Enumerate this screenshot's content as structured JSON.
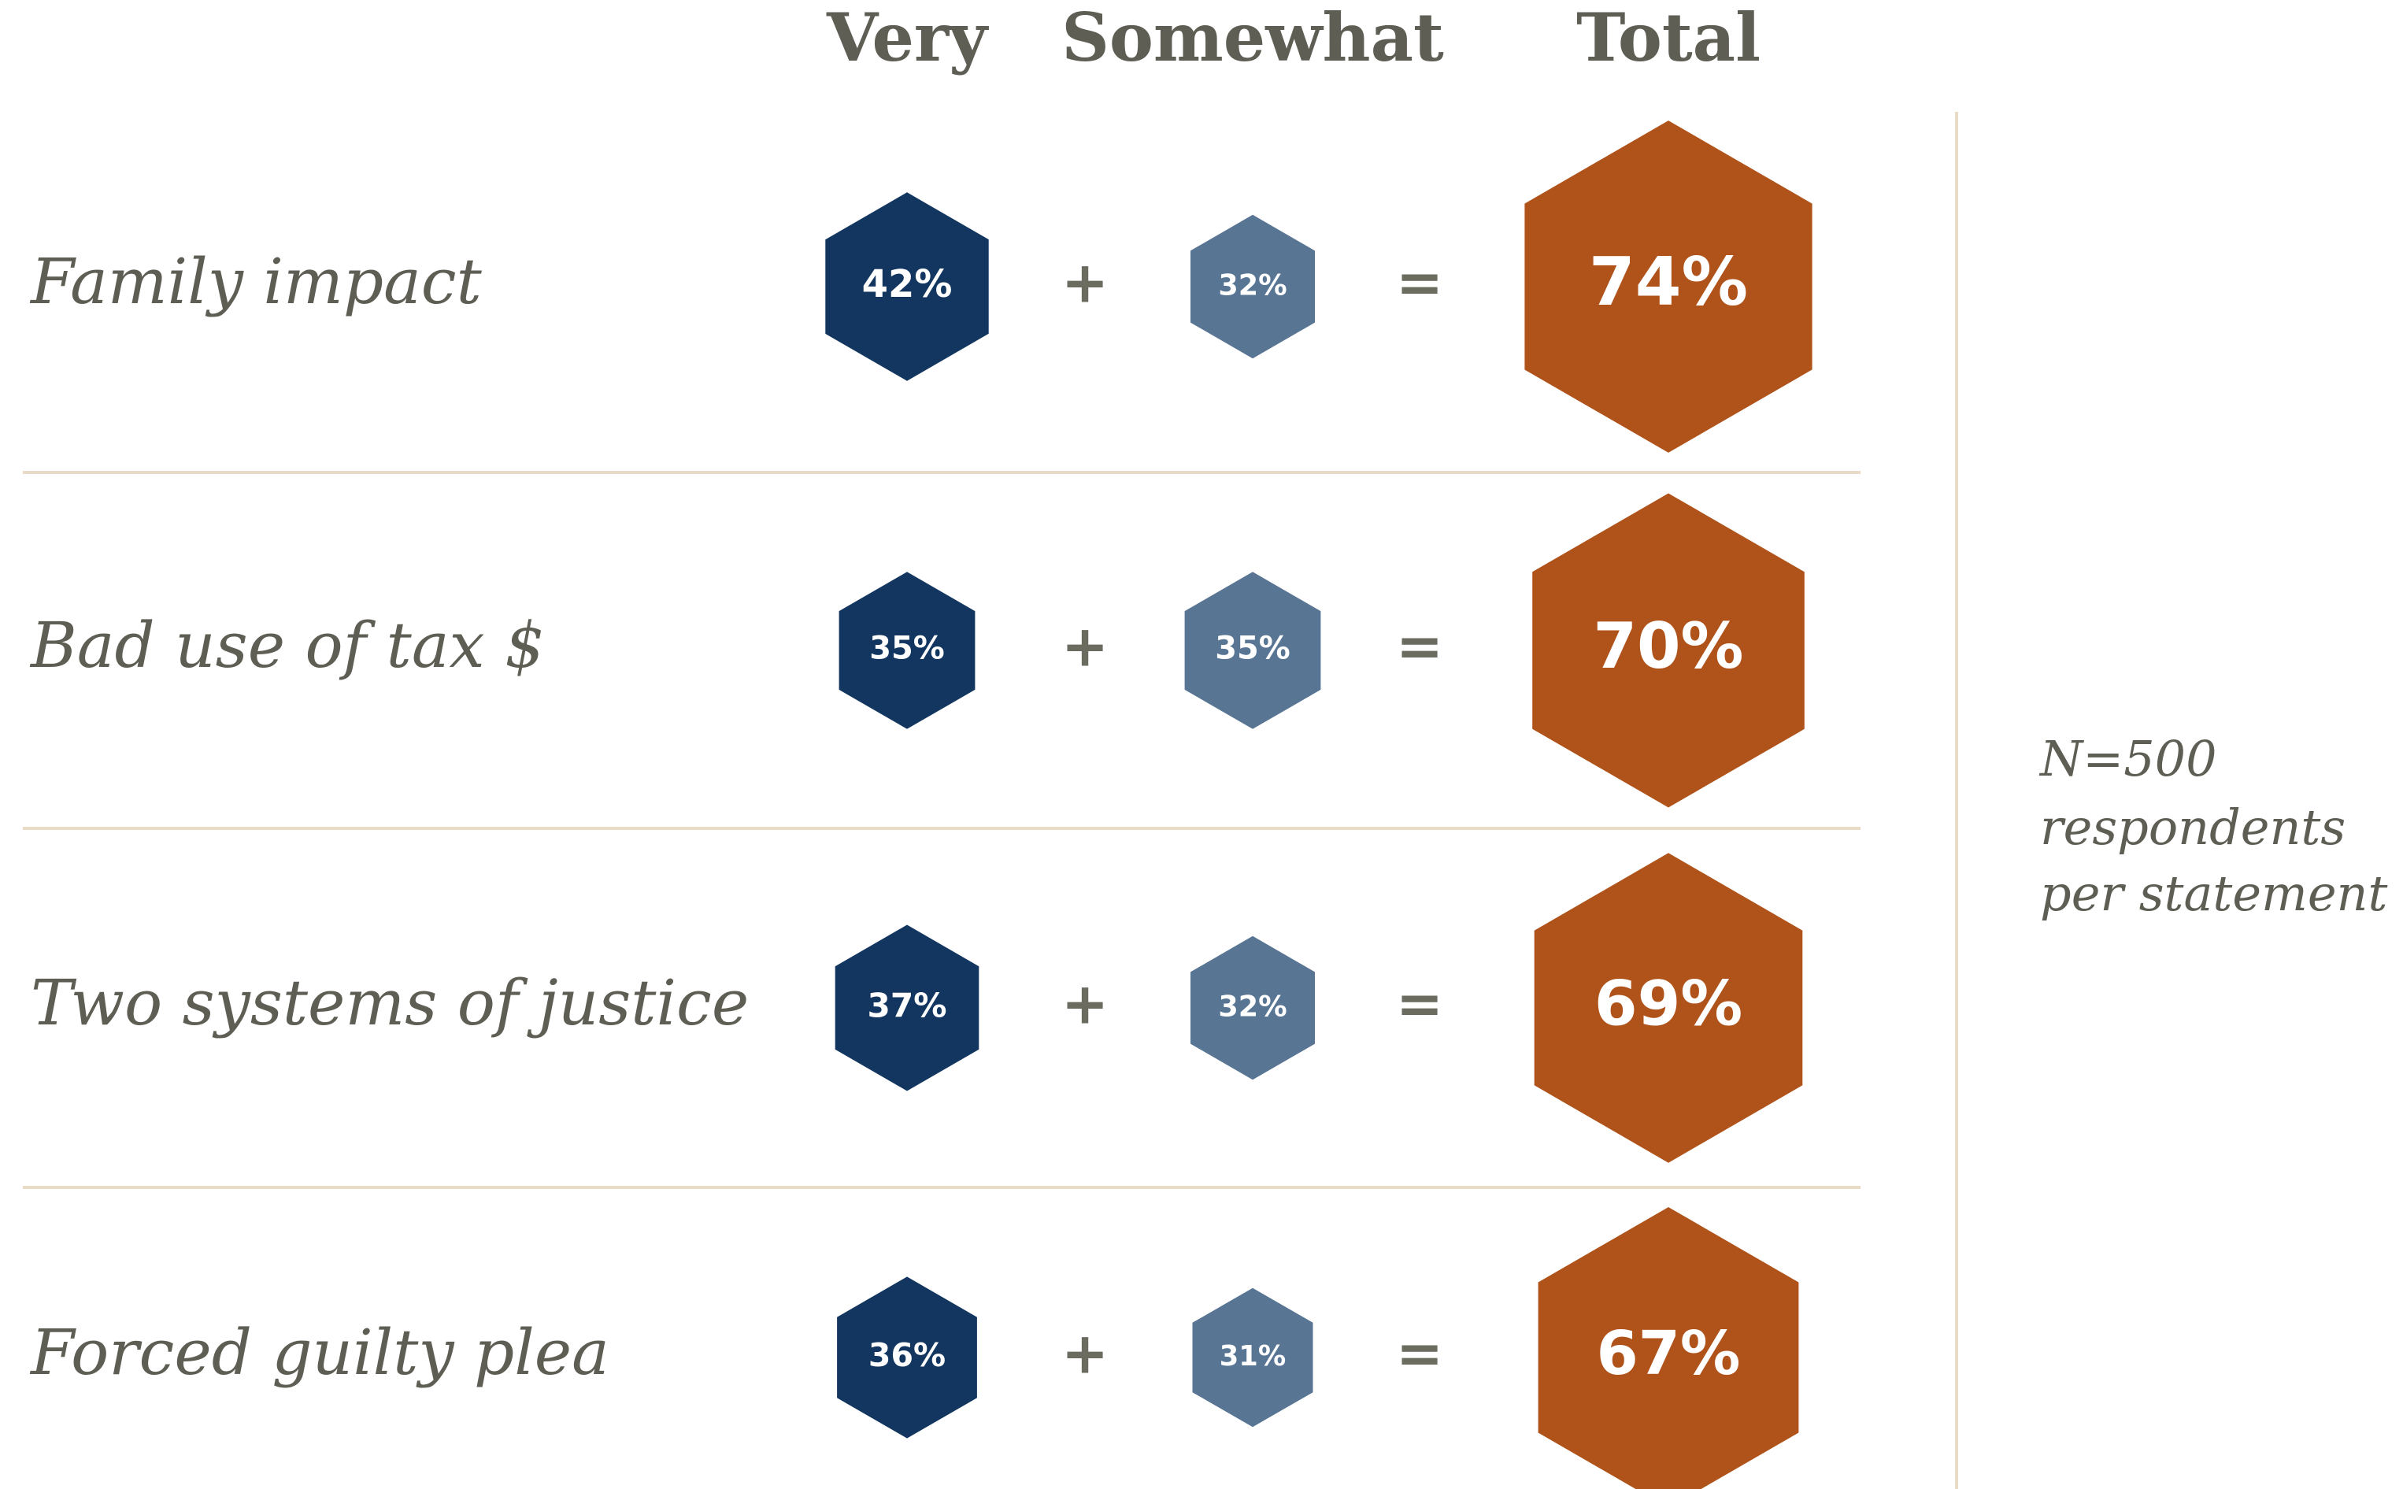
{
  "chart_data": {
    "type": "hexagon",
    "categories": [
      "Family impact",
      "Bad use of tax $",
      "Two systems of justice",
      "Forced guilty plea"
    ],
    "series": [
      {
        "name": "Very",
        "color": "#12365f",
        "values": [
          42,
          35,
          37,
          36
        ],
        "value_labels": [
          "42%",
          "35%",
          "37%",
          "36%"
        ]
      },
      {
        "name": "Somewhat",
        "color": "#587594",
        "values": [
          32,
          35,
          32,
          31
        ],
        "value_labels": [
          "32%",
          "35%",
          "32%",
          "31%"
        ]
      },
      {
        "name": "Total",
        "color": "#b0531b",
        "values": [
          74,
          70,
          69,
          67
        ],
        "value_labels": [
          "74%",
          "70%",
          "69%",
          "67%"
        ]
      }
    ],
    "operators": [
      "+",
      "="
    ],
    "annotation": [
      "N=500",
      "respondents",
      "per statement"
    ]
  }
}
